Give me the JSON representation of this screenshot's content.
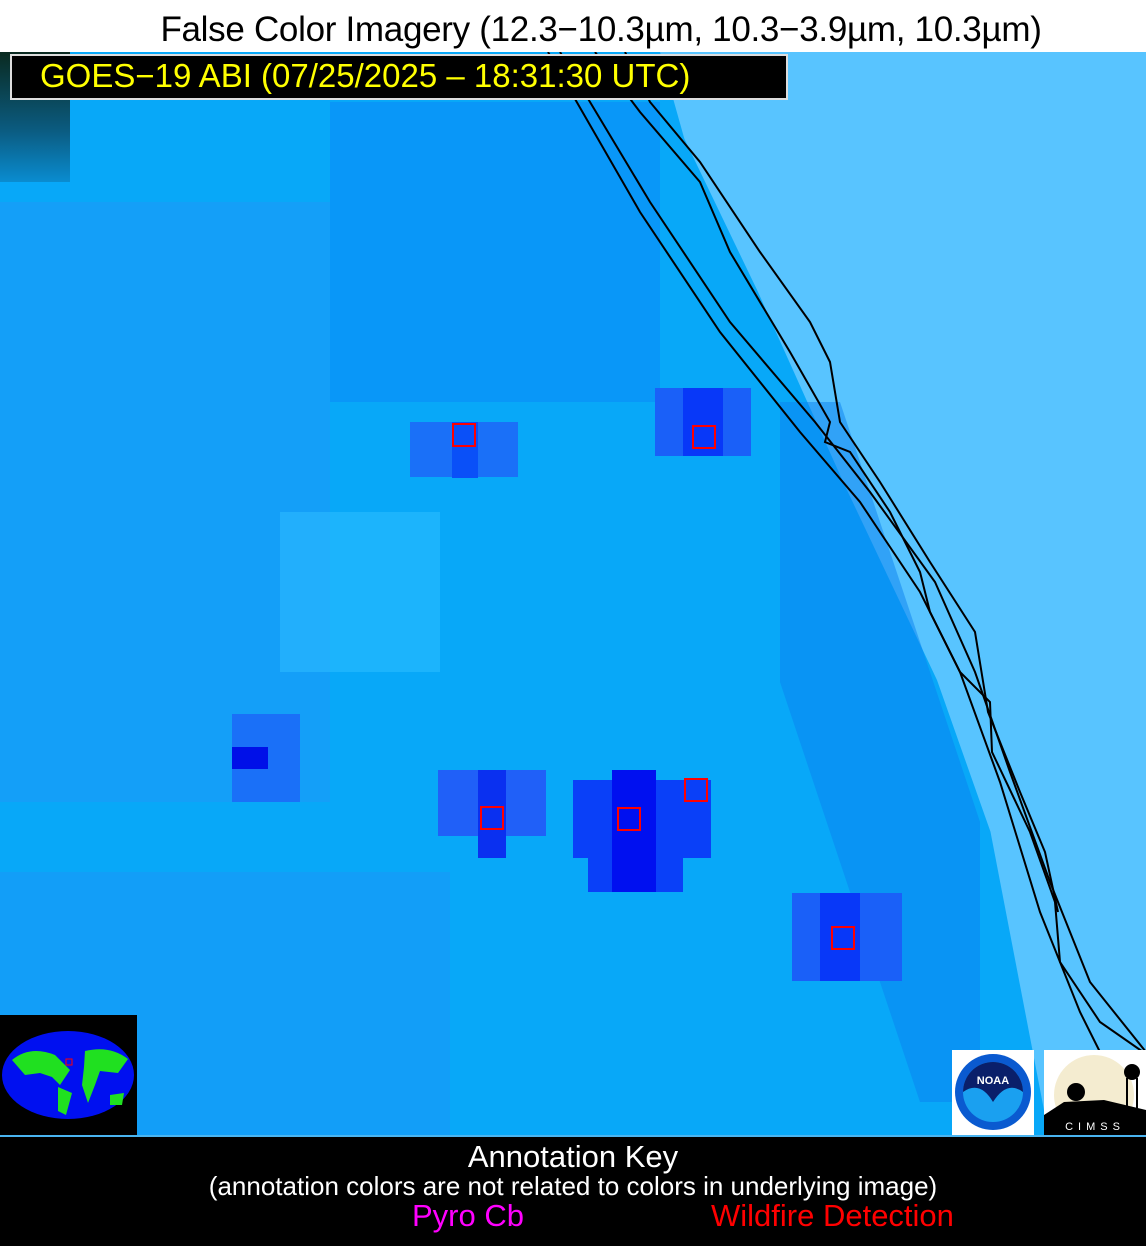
{
  "header": {
    "title": "False Color Imagery (12.3−10.3µm, 10.3−3.9µm, 10.3µm)"
  },
  "image_label": {
    "text": "GOES−19 ABI (07/25/2025 – 18:31:30 UTC)",
    "color": "#ffff00"
  },
  "logos": {
    "noaa": "NOAA",
    "cimss": "CIMSS"
  },
  "annotation_key": {
    "title": "Annotation Key",
    "subtitle": "(annotation colors are not related to colors in underlying image)",
    "items": [
      {
        "label": "Pyro Cb",
        "color": "#ff00ff"
      },
      {
        "label": "Wildfire Detection",
        "color": "#ff0000"
      }
    ]
  }
}
